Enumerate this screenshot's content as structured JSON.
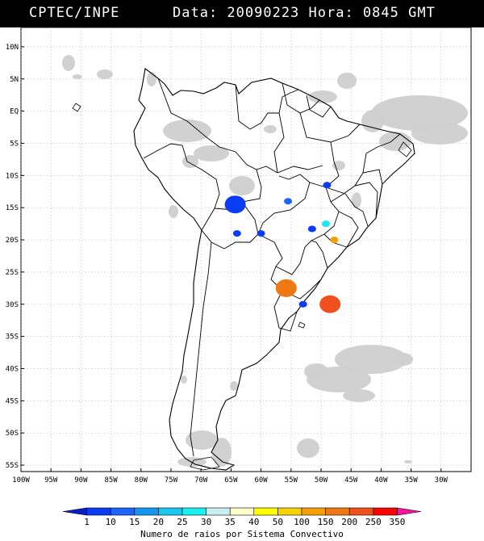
{
  "header": {
    "org": "CPTEC/INPE",
    "info": "Data: 20090223 Hora: 0845 GMT"
  },
  "map": {
    "lon_range": [
      -100,
      -25
    ],
    "lat_range": [
      -56,
      13
    ],
    "lat_ticks": [
      "10N",
      "5N",
      "EQ",
      "5S",
      "10S",
      "15S",
      "20S",
      "25S",
      "30S",
      "35S",
      "40S",
      "45S",
      "50S",
      "55S"
    ],
    "lon_ticks": [
      "100W",
      "95W",
      "90W",
      "85W",
      "80W",
      "75W",
      "70W",
      "65W",
      "60W",
      "55W",
      "50W",
      "45W",
      "40W",
      "35W",
      "30W"
    ],
    "colors": {
      "land_border": "#000000",
      "cloud": "#c8c8c8",
      "grid": "#a0a0a0"
    },
    "convective_systems": [
      {
        "lon": -64.3,
        "lat": -14.5,
        "category": "1",
        "color": "#0b3cf5"
      },
      {
        "lon": -64.0,
        "lat": -19.0,
        "category": "1",
        "color": "#0b3cf5"
      },
      {
        "lon": -60.0,
        "lat": -19.0,
        "category": "1",
        "color": "#0b3cf5"
      },
      {
        "lon": -55.5,
        "lat": -14.0,
        "category": "10",
        "color": "#1e64ff"
      },
      {
        "lon": -49.0,
        "lat": -11.5,
        "category": "1",
        "color": "#0b3cf5"
      },
      {
        "lon": -51.5,
        "lat": -18.3,
        "category": "1",
        "color": "#0b3cf5"
      },
      {
        "lon": -49.2,
        "lat": -17.5,
        "category": "25",
        "color": "#19e6f0"
      },
      {
        "lon": -47.8,
        "lat": -20.0,
        "category": "100",
        "color": "#f5a000"
      },
      {
        "lon": -55.8,
        "lat": -27.5,
        "category": "150",
        "color": "#f07814"
      },
      {
        "lon": -53.0,
        "lat": -30.0,
        "category": "1",
        "color": "#0b3cf5"
      },
      {
        "lon": -48.5,
        "lat": -30.0,
        "category": "200",
        "color": "#f0501e"
      }
    ]
  },
  "legend": {
    "title": "Numero de raios por Sistema Convectivo",
    "labels": [
      "1",
      "10",
      "15",
      "20",
      "25",
      "30",
      "35",
      "40",
      "50",
      "100",
      "150",
      "200",
      "250",
      "350"
    ],
    "colors": [
      "#0a1ec8",
      "#0b3cf5",
      "#1e64ff",
      "#1496f0",
      "#19c8f0",
      "#19f0f0",
      "#c8f0f0",
      "#ffffc8",
      "#ffff00",
      "#f5d200",
      "#f5a000",
      "#f07814",
      "#f0501e",
      "#ff0000",
      "#ff14a0"
    ]
  }
}
